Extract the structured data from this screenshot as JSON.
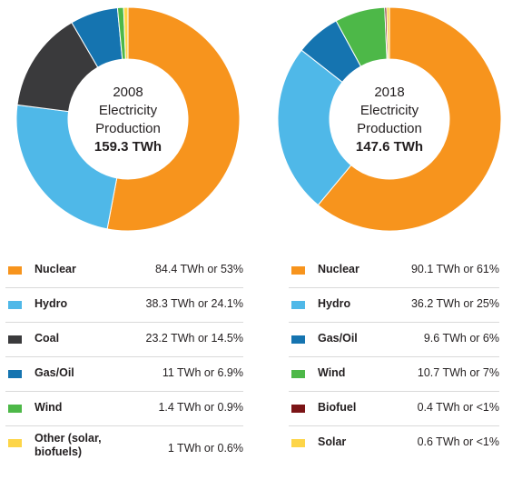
{
  "chart_data": [
    {
      "type": "pie",
      "donut": true,
      "center": {
        "year": "2008",
        "line1": "Electricity",
        "line2": "Production",
        "total": "159.3 TWh"
      },
      "slices": [
        {
          "name": "Nuclear",
          "value": 84.4,
          "percent": 53,
          "label": "84.4 TWh or 53%",
          "color": "#f7941d"
        },
        {
          "name": "Hydro",
          "value": 38.3,
          "percent": 24.1,
          "label": "38.3 TWh or 24.1%",
          "color": "#4fb8e8"
        },
        {
          "name": "Coal",
          "value": 23.2,
          "percent": 14.5,
          "label": "23.2 TWh or 14.5%",
          "color": "#3a3a3c"
        },
        {
          "name": "Gas/Oil",
          "value": 11,
          "percent": 6.9,
          "label": "11 TWh or 6.9%",
          "color": "#1574b0"
        },
        {
          "name": "Wind",
          "value": 1.4,
          "percent": 0.9,
          "label": "1.4 TWh or 0.9%",
          "color": "#4db848"
        },
        {
          "name": "Other (solar, biofuels)",
          "value": 1,
          "percent": 0.6,
          "label": "1 TWh or 0.6%",
          "color": "#fdd548"
        }
      ]
    },
    {
      "type": "pie",
      "donut": true,
      "center": {
        "year": "2018",
        "line1": "Electricity",
        "line2": "Production",
        "total": "147.6 TWh"
      },
      "slices": [
        {
          "name": "Nuclear",
          "value": 90.1,
          "percent": 61,
          "label": "90.1 TWh or 61%",
          "color": "#f7941d"
        },
        {
          "name": "Hydro",
          "value": 36.2,
          "percent": 25,
          "label": "36.2 TWh or 25%",
          "color": "#4fb8e8"
        },
        {
          "name": "Gas/Oil",
          "value": 9.6,
          "percent": 6,
          "label": "9.6 TWh or 6%",
          "color": "#1574b0"
        },
        {
          "name": "Wind",
          "value": 10.7,
          "percent": 7,
          "label": "10.7 TWh or 7%",
          "color": "#4db848"
        },
        {
          "name": "Biofuel",
          "value": 0.4,
          "percent": 0.3,
          "label": "0.4 TWh or <1%",
          "color": "#7b1416"
        },
        {
          "name": "Solar",
          "value": 0.6,
          "percent": 0.4,
          "label": "0.6 TWh or <1%",
          "color": "#fdd548"
        }
      ]
    }
  ]
}
